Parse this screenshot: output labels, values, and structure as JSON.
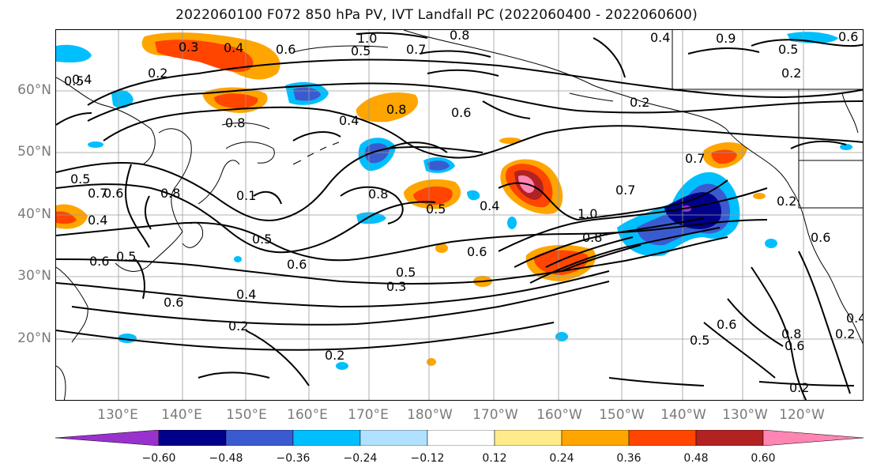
{
  "title": "2022060100 F072 850 hPa PV, IVT Landfall PC (2022060400 - 2022060600)",
  "map": {
    "lat_labels": [
      "60°N",
      "50°N",
      "40°N",
      "30°N",
      "20°N"
    ],
    "lon_labels": [
      "130°E",
      "140°E",
      "150°E",
      "160°E",
      "170°E",
      "180°W",
      "170°W",
      "160°W",
      "150°W",
      "140°W",
      "130°W",
      "120°W"
    ],
    "contour_labels": [
      "0.3",
      "0.4",
      "0.6",
      "1.0",
      "0.5",
      "0.7",
      "0.8",
      "0.9",
      "0.6",
      "0.5",
      "0.2",
      "0.4",
      "0.2",
      "0.5",
      "0.4",
      "0.8",
      "0.8",
      "0.6",
      "0.2",
      "0.8",
      "0.4",
      "0.7",
      "0.5",
      "0.7",
      "0.6",
      "0.8",
      "0.1",
      "0.4",
      "0.6",
      "0.5",
      "0.5",
      "0.5",
      "0.4",
      "0.6",
      "1.0",
      "0.8",
      "0.7",
      "0.2",
      "0.6",
      "0.6",
      "0.5",
      "0.3",
      "0.4",
      "0.6",
      "0.2",
      "0.2",
      "0.6",
      "0.5",
      "0.8",
      "0.6",
      "0.2",
      "0.2",
      "0.4"
    ],
    "colors": {
      "land_outline": "#000000",
      "grid": "#9a9a9a",
      "contour": "#000000"
    }
  },
  "colorbar": {
    "ticks": [
      "−0.60",
      "−0.48",
      "−0.36",
      "−0.24",
      "−0.12",
      "0.12",
      "0.24",
      "0.36",
      "0.48",
      "0.60"
    ],
    "colors": [
      "#9932cc",
      "#00008b",
      "#3a5bd0",
      "#00bfff",
      "#b0e2ff",
      "#ffffff",
      "#ffea8c",
      "#ffa500",
      "#ff4500",
      "#b22222",
      "#ff85b3"
    ]
  }
}
